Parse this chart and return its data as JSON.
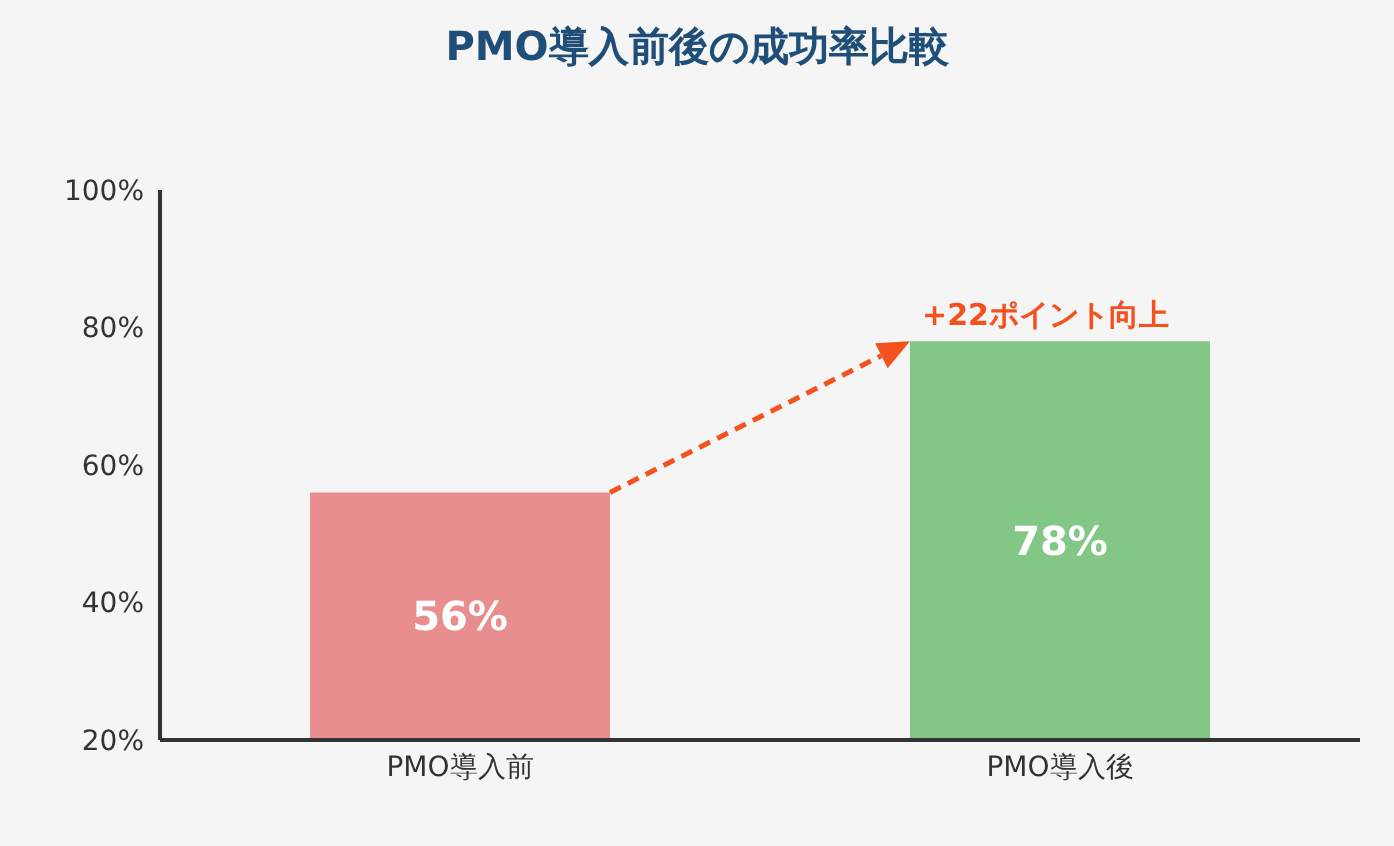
{
  "chart_data": {
    "type": "bar",
    "title": "PMO導入前後の成功率比較",
    "categories": [
      "PMO導入前",
      "PMO導入後"
    ],
    "values": [
      56,
      78
    ],
    "colors": [
      "#e88e8e",
      "#82c785"
    ],
    "value_labels": [
      "56%",
      "78%"
    ],
    "ylim": [
      20,
      100
    ],
    "yticks": [
      {
        "value": 20,
        "label": "20%"
      },
      {
        "value": 40,
        "label": "40%"
      },
      {
        "value": 60,
        "label": "60%"
      },
      {
        "value": 80,
        "label": "80%"
      },
      {
        "value": 100,
        "label": "100%"
      }
    ],
    "grid": false,
    "legend": false,
    "annotations": [
      {
        "text": "+22ポイント向上",
        "x": "PMO導入後",
        "y": 78
      }
    ]
  }
}
